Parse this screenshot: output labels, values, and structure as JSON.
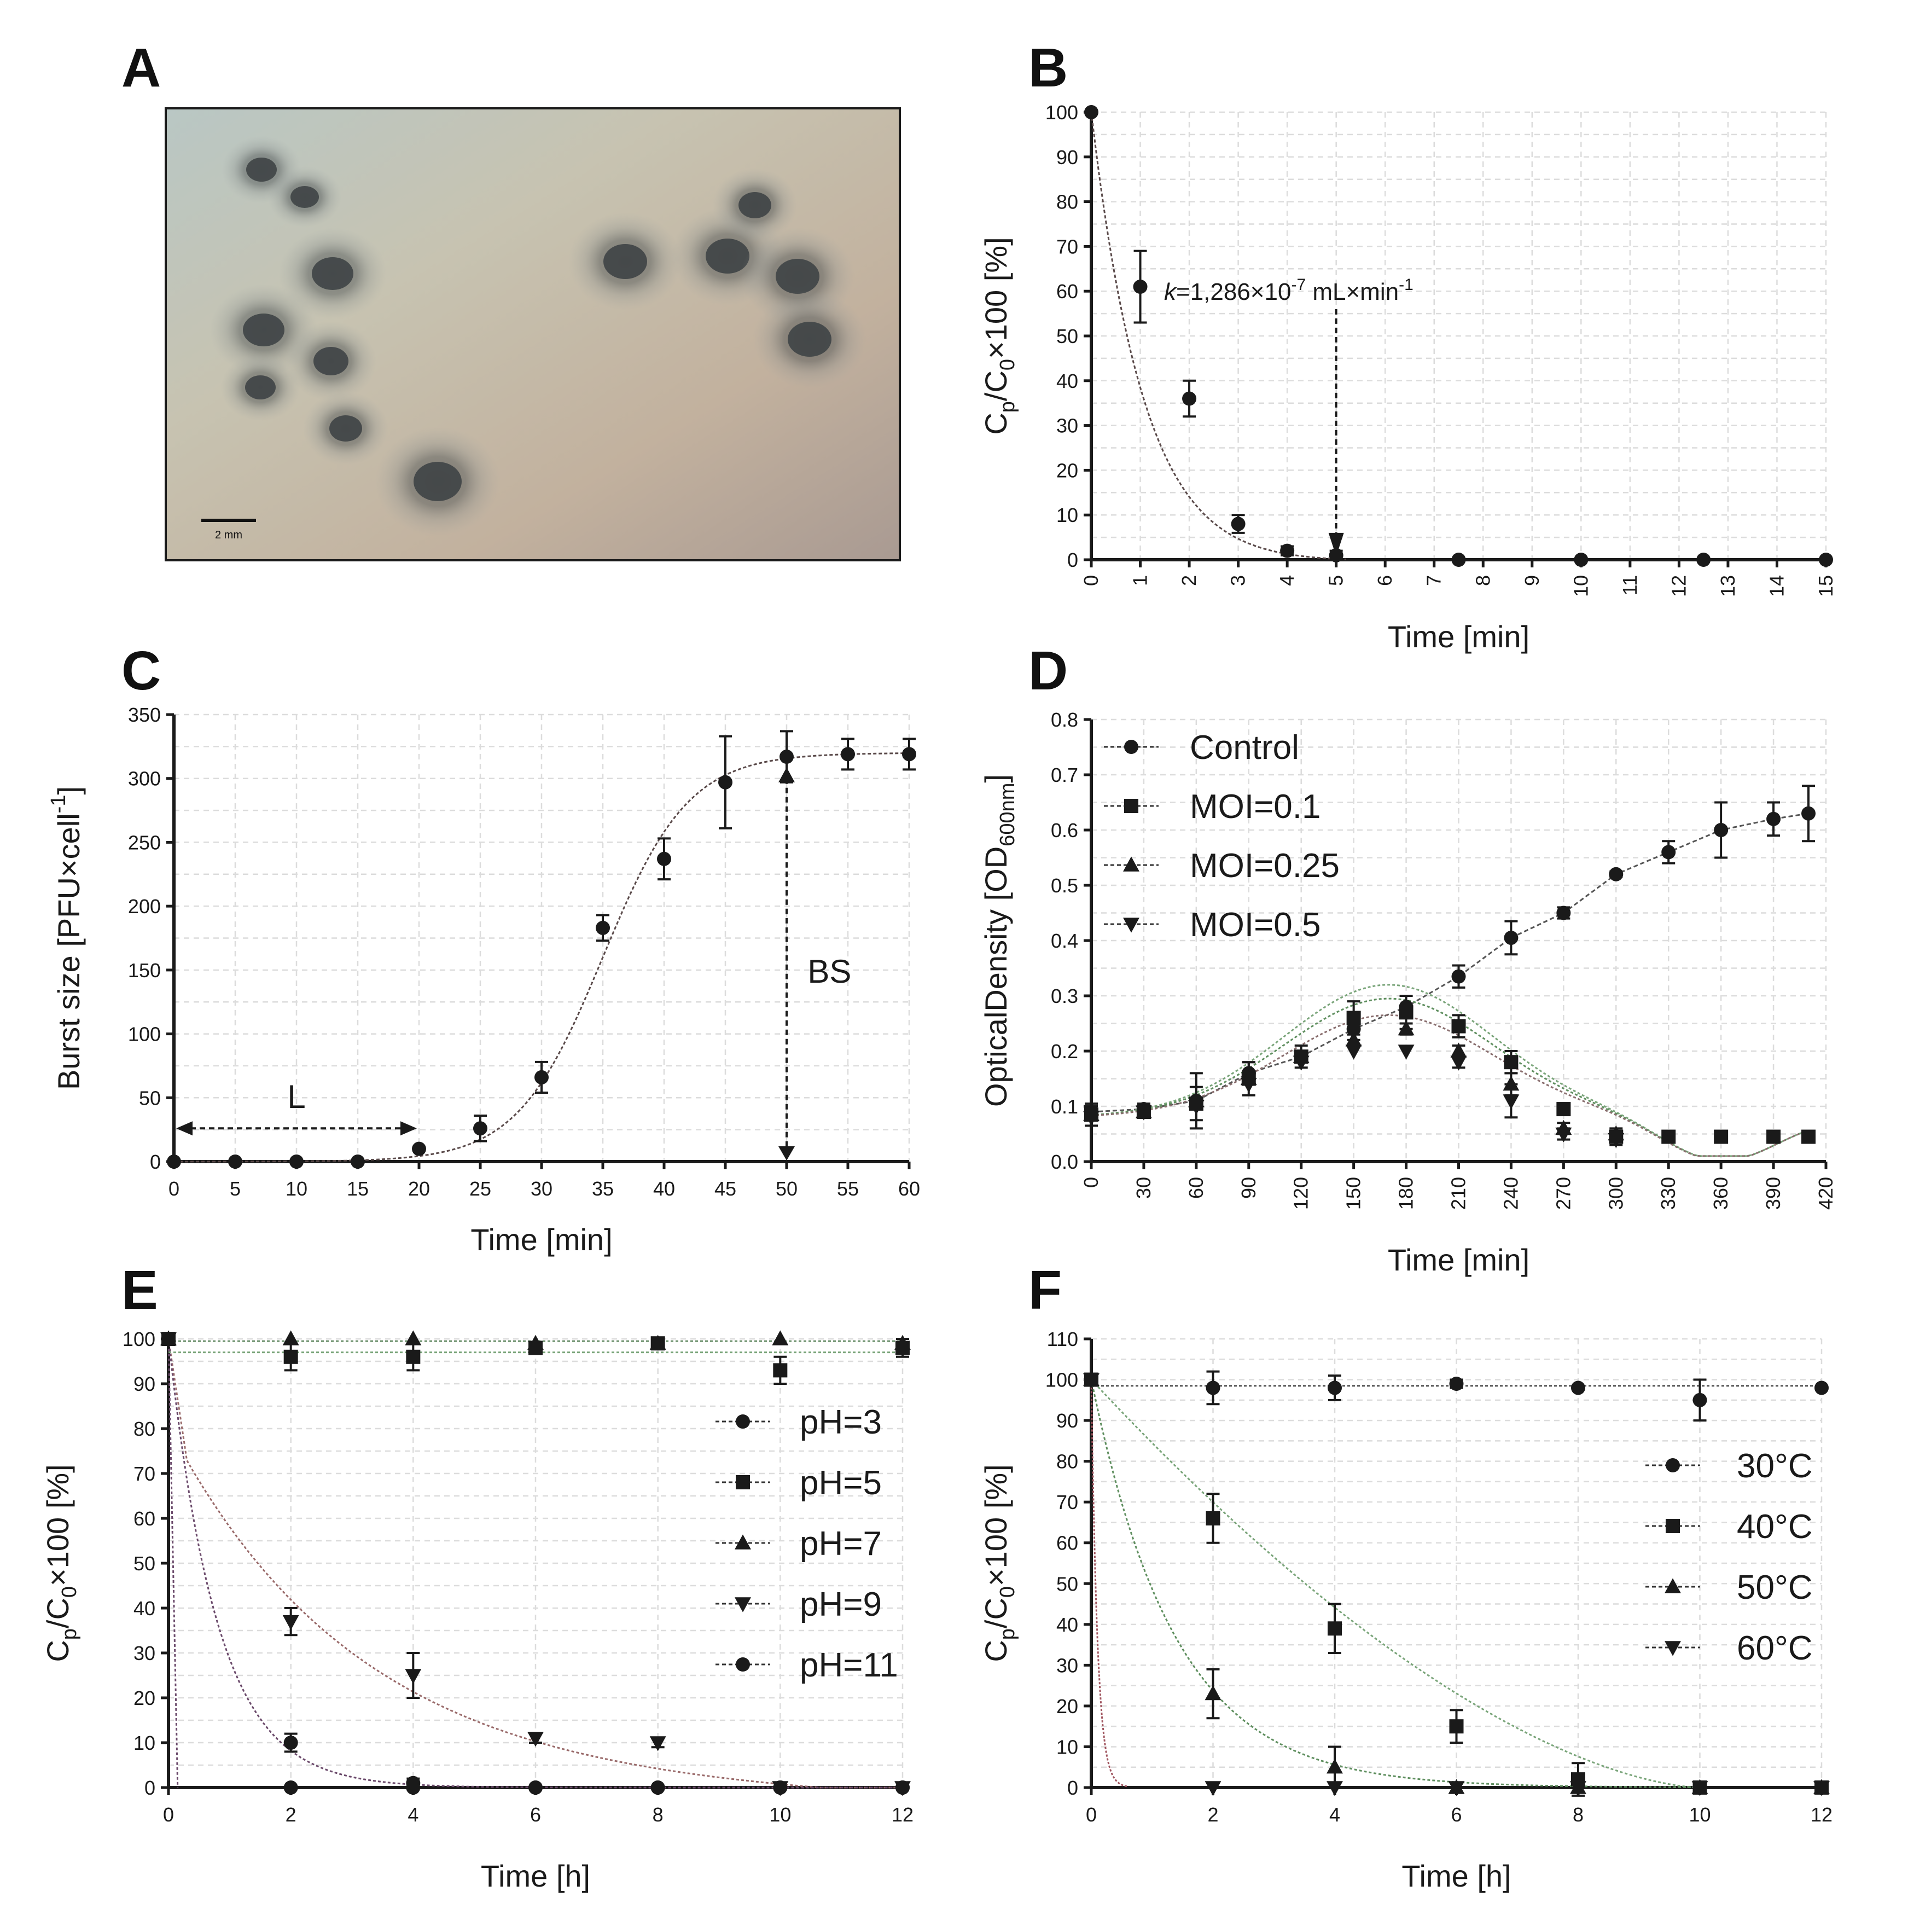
{
  "panels": {
    "A": {
      "label": "A",
      "scale_bar_text": "2 mm"
    },
    "B": {
      "label": "B",
      "annotation": {
        "prefix": "k",
        "text": "=1,286×10",
        "exp": "-7",
        "unit": " mL×min",
        "unit_exp": "-1"
      }
    },
    "C": {
      "label": "C",
      "annotation_L": "L",
      "annotation_BS": "BS"
    },
    "D": {
      "label": "D"
    },
    "E": {
      "label": "E"
    },
    "F": {
      "label": "F"
    }
  },
  "chart_data": [
    {
      "id": "B",
      "type": "scatter",
      "xlabel": "Time [min]",
      "ylabel": {
        "parts": [
          "C",
          "p",
          "/C",
          "0",
          "×100 [%]"
        ]
      },
      "xlim": [
        0,
        15
      ],
      "ylim": [
        0,
        100
      ],
      "xticks": [
        0,
        1,
        2,
        3,
        4,
        5,
        6,
        7,
        8,
        9,
        10,
        11,
        12,
        13,
        14,
        15
      ],
      "yticks": [
        0,
        10,
        20,
        30,
        40,
        50,
        60,
        70,
        80,
        90,
        100
      ],
      "xtick_rotated": true,
      "series": [
        {
          "marker": "circle",
          "color": "#1a1a1a",
          "x": [
            0,
            1,
            2,
            3,
            4,
            5,
            7.5,
            10,
            12.5,
            15
          ],
          "y": [
            100,
            61,
            36,
            8,
            2,
            1,
            0,
            0,
            0,
            0
          ],
          "err": [
            0,
            8,
            4,
            2,
            1,
            1,
            0,
            0,
            0,
            0
          ]
        }
      ],
      "fit": {
        "color": "#5a4a4a",
        "type": "exp_decay",
        "y0": 100,
        "k": 0.75
      }
    },
    {
      "id": "C",
      "type": "scatter",
      "xlabel": "Time [min]",
      "ylabel": {
        "parts": [
          "Burst size [PFU×cell",
          "",
          "",
          "-1",
          "]"
        ]
      },
      "xlim": [
        0,
        60
      ],
      "ylim": [
        0,
        350
      ],
      "xticks": [
        0,
        5,
        10,
        15,
        20,
        25,
        30,
        35,
        40,
        45,
        50,
        55,
        60
      ],
      "yticks": [
        0,
        50,
        100,
        150,
        200,
        250,
        300,
        350
      ],
      "series": [
        {
          "marker": "circle",
          "color": "#1a1a1a",
          "x": [
            0,
            5,
            10,
            15,
            20,
            25,
            30,
            35,
            40,
            45,
            50,
            55,
            60
          ],
          "y": [
            0,
            0,
            0,
            0,
            10,
            26,
            66,
            183,
            237,
            297,
            317,
            319,
            319
          ],
          "err": [
            0,
            0,
            0,
            0,
            0,
            10,
            12,
            10,
            16,
            36,
            20,
            12,
            12
          ]
        },
        {
          "marker": "triangle",
          "color": "#1a1a1a",
          "x": [
            50
          ],
          "y": [
            302
          ],
          "err": [
            0
          ]
        }
      ],
      "fit": {
        "color": "#5a4a4a",
        "type": "sigmoid",
        "top": 320,
        "mid": 35,
        "w": 3.5
      }
    },
    {
      "id": "D",
      "type": "line",
      "xlabel": "Time [min]",
      "ylabel": {
        "parts": [
          "OpticalDensity [OD",
          "",
          "600nm",
          "",
          "]"
        ]
      },
      "xlim": [
        0,
        420
      ],
      "ylim": [
        0,
        0.8
      ],
      "xticks": [
        0,
        30,
        60,
        90,
        120,
        150,
        180,
        210,
        240,
        270,
        300,
        330,
        360,
        390,
        420
      ],
      "yticks": [
        0,
        0.1,
        0.2,
        0.3,
        0.4,
        0.5,
        0.6,
        0.7,
        0.8
      ],
      "ytick_labels": [
        "0.0",
        "0.1",
        "0.2",
        "0.3",
        "0.4",
        "0.5",
        "0.6",
        "0.7",
        "0.8"
      ],
      "xtick_rotated": true,
      "legend": "top-left",
      "series": [
        {
          "name": "Control",
          "marker": "circle",
          "color": "#1a1a1a",
          "x": [
            0,
            30,
            60,
            90,
            120,
            150,
            180,
            210,
            240,
            270,
            300,
            330,
            360,
            390,
            410
          ],
          "y": [
            0.09,
            0.095,
            0.11,
            0.16,
            0.19,
            0.24,
            0.28,
            0.335,
            0.405,
            0.45,
            0.52,
            0.56,
            0.6,
            0.62,
            0.63
          ],
          "err": [
            0.01,
            0.01,
            0.05,
            0.02,
            0.01,
            0.02,
            0.02,
            0.02,
            0.03,
            0.01,
            0.005,
            0.02,
            0.05,
            0.03,
            0.05
          ]
        },
        {
          "name": "MOI=0.1",
          "marker": "square",
          "color": "#1a1a1a",
          "x": [
            0,
            30,
            60,
            90,
            120,
            150,
            180,
            210,
            240,
            270,
            300,
            330,
            360,
            390,
            410
          ],
          "y": [
            0.085,
            0.09,
            0.105,
            0.15,
            0.19,
            0.26,
            0.27,
            0.245,
            0.18,
            0.095,
            0.045,
            0.045,
            0.045,
            0.045,
            0.045
          ],
          "err": [
            0.02,
            0.01,
            0.03,
            0.03,
            0.02,
            0.03,
            0.03,
            0.02,
            0.02,
            0.01,
            0.01,
            0,
            0,
            0,
            0
          ]
        },
        {
          "name": "MOI=0.25",
          "marker": "triangle",
          "color": "#1a1a1a",
          "x": [
            0,
            30,
            60,
            90,
            120,
            150,
            180,
            210,
            240,
            270,
            300
          ],
          "y": [
            0.085,
            0.09,
            0.11,
            0.15,
            0.19,
            0.22,
            0.24,
            0.2,
            0.14,
            0.06,
            0.05
          ],
          "err": [
            0,
            0,
            0,
            0,
            0,
            0,
            0.01,
            0.01,
            0.02,
            0.01,
            0.01
          ]
        },
        {
          "name": "MOI=0.5",
          "marker": "triangle-down",
          "color": "#1a1a1a",
          "x": [
            0,
            30,
            60,
            90,
            120,
            150,
            180,
            210,
            240,
            270,
            300
          ],
          "y": [
            0.08,
            0.09,
            0.1,
            0.14,
            0.18,
            0.2,
            0.2,
            0.18,
            0.11,
            0.05,
            0.04
          ],
          "err": [
            0,
            0,
            0,
            0,
            0,
            0,
            0,
            0.01,
            0.03,
            0.01,
            0.01
          ]
        }
      ]
    },
    {
      "id": "E",
      "type": "scatter",
      "xlabel": "Time [h]",
      "ylabel": {
        "parts": [
          "C",
          "p",
          "/C",
          "0",
          "×100 [%]"
        ]
      },
      "xlim": [
        0,
        12
      ],
      "ylim": [
        0,
        100
      ],
      "xticks": [
        0,
        2,
        4,
        6,
        8,
        10,
        12
      ],
      "yticks": [
        0,
        10,
        20,
        30,
        40,
        50,
        60,
        70,
        80,
        90,
        100
      ],
      "legend": "right",
      "series": [
        {
          "name": "pH=3",
          "marker": "circle",
          "color": "#1a1a1a",
          "x": [
            0,
            2,
            4,
            6,
            8,
            10,
            12
          ],
          "y": [
            100,
            0,
            0,
            0,
            0,
            0,
            0
          ],
          "err": [
            0,
            0,
            0,
            0,
            0,
            0,
            0
          ]
        },
        {
          "name": "pH=5",
          "marker": "square",
          "color": "#1a1a1a",
          "x": [
            0,
            2,
            4,
            6,
            8,
            10,
            12
          ],
          "y": [
            100,
            96,
            96,
            98,
            99,
            93,
            98
          ],
          "err": [
            0,
            3,
            3,
            1,
            1,
            3,
            2
          ]
        },
        {
          "name": "pH=7",
          "marker": "triangle",
          "color": "#1a1a1a",
          "x": [
            0,
            2,
            4,
            6,
            8,
            10,
            12
          ],
          "y": [
            100,
            100,
            100,
            99,
            99,
            100,
            99
          ],
          "err": [
            0,
            0,
            0,
            0,
            0,
            0,
            0
          ]
        },
        {
          "name": "pH=9",
          "marker": "triangle-down",
          "color": "#1a1a1a",
          "x": [
            0,
            2,
            4,
            6,
            8,
            10,
            12
          ],
          "y": [
            100,
            37,
            25,
            11,
            10,
            0,
            0
          ],
          "err": [
            0,
            3,
            5,
            1,
            1,
            0,
            0
          ]
        },
        {
          "name": "pH=11",
          "marker": "circle",
          "color": "#1a1a1a",
          "x": [
            0,
            2,
            4,
            6,
            8,
            10,
            12
          ],
          "y": [
            100,
            10,
            1,
            0,
            0,
            0,
            0
          ],
          "err": [
            0,
            2,
            1,
            0,
            0,
            0,
            0
          ]
        }
      ]
    },
    {
      "id": "F",
      "type": "scatter",
      "xlabel": "Time [h]",
      "ylabel": {
        "parts": [
          "C",
          "p",
          "/C",
          "0",
          "×100 [%]"
        ]
      },
      "xlim": [
        0,
        12
      ],
      "ylim": [
        0,
        110
      ],
      "xticks": [
        0,
        2,
        4,
        6,
        8,
        10,
        12
      ],
      "yticks": [
        0,
        10,
        20,
        30,
        40,
        50,
        60,
        70,
        80,
        90,
        100,
        110
      ],
      "legend": "right",
      "series": [
        {
          "name": "30°C",
          "marker": "circle",
          "color": "#1a1a1a",
          "x": [
            0,
            2,
            4,
            6,
            8,
            10,
            12
          ],
          "y": [
            100,
            98,
            98,
            99,
            98,
            95,
            98
          ],
          "err": [
            0,
            4,
            3,
            1,
            0,
            5,
            0
          ]
        },
        {
          "name": "40°C",
          "marker": "square",
          "color": "#1a1a1a",
          "x": [
            0,
            2,
            4,
            6,
            8,
            10,
            12
          ],
          "y": [
            100,
            66,
            39,
            15,
            2,
            0,
            0
          ],
          "err": [
            0,
            6,
            6,
            4,
            4,
            0,
            0
          ]
        },
        {
          "name": "50°C",
          "marker": "triangle",
          "color": "#1a1a1a",
          "x": [
            0,
            2,
            4,
            6,
            8,
            10,
            12
          ],
          "y": [
            100,
            23,
            5,
            0,
            0,
            0,
            0
          ],
          "err": [
            0,
            6,
            5,
            0,
            0,
            0,
            0
          ]
        },
        {
          "name": "60°C",
          "marker": "triangle-down",
          "color": "#1a1a1a",
          "x": [
            0,
            2,
            4,
            6,
            8,
            10,
            12
          ],
          "y": [
            100,
            0,
            0,
            0,
            0,
            0,
            0
          ],
          "err": [
            0,
            0,
            0,
            0,
            0,
            0,
            0
          ]
        }
      ]
    }
  ]
}
